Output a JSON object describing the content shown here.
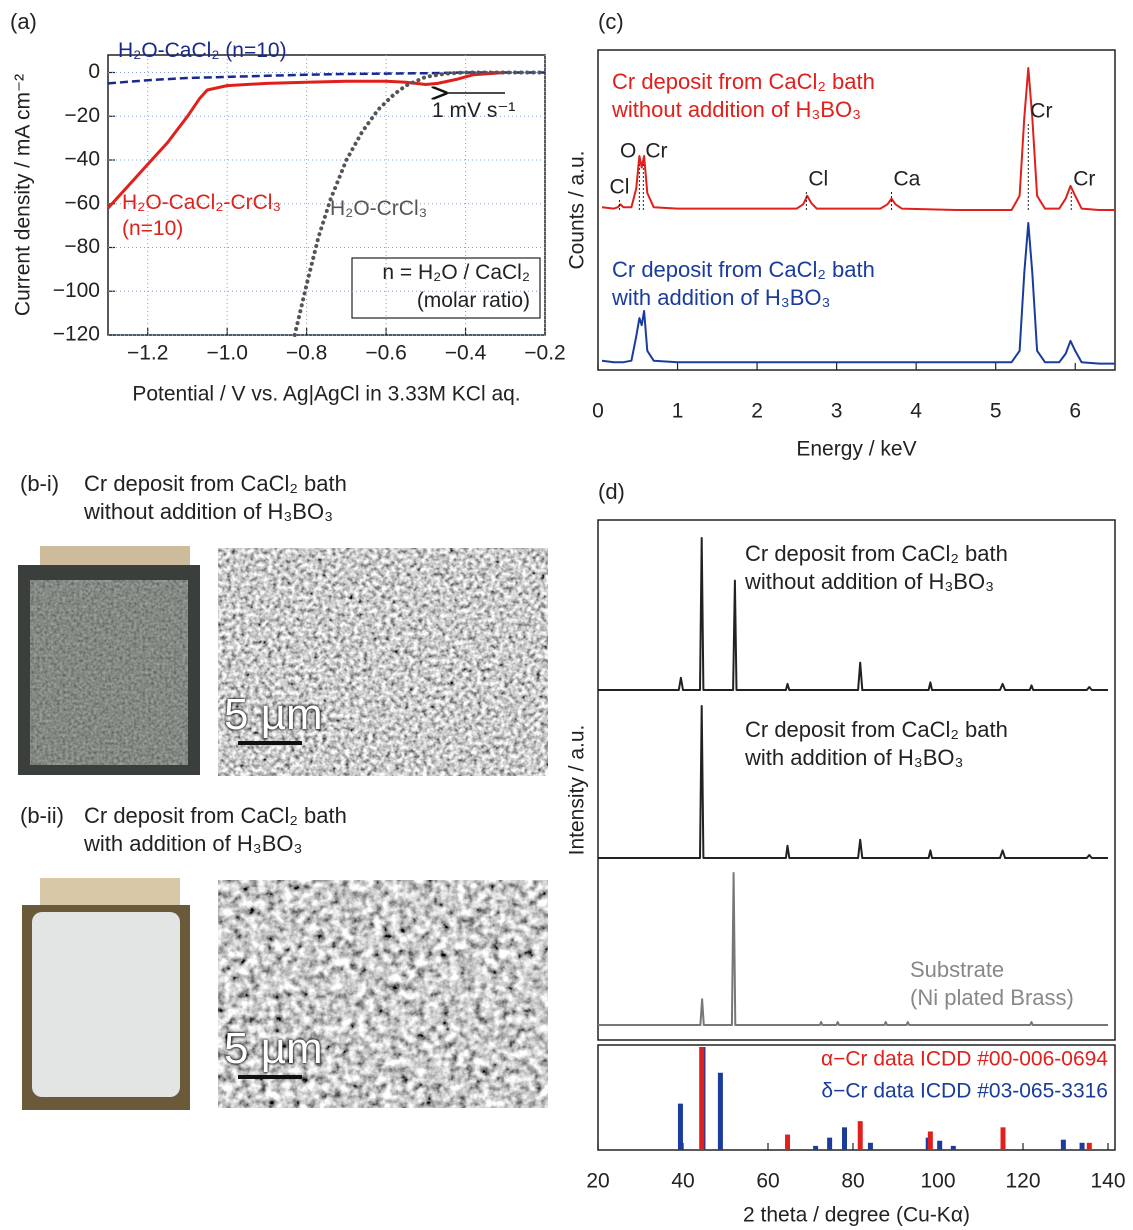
{
  "chart_data": [
    {
      "type": "line",
      "panel": "(a)",
      "xlabel": "Potential / V vs. Ag|AgCl in 3.33M KCl aq.",
      "ylabel": "Current density / mA cm⁻²",
      "xlim": [
        -1.3,
        -0.2
      ],
      "ylim": [
        -120,
        8
      ],
      "xticks": [
        {
          "value": -1.2,
          "label": "−1.2"
        },
        {
          "value": -1.0,
          "label": "−1.0"
        },
        {
          "value": -0.8,
          "label": "−0.8"
        },
        {
          "value": -0.6,
          "label": "−0.6"
        },
        {
          "value": -0.4,
          "label": "−0.4"
        },
        {
          "value": -0.2,
          "label": "−0.2"
        }
      ],
      "yticks": [
        {
          "value": -120,
          "label": "−120"
        },
        {
          "value": -100,
          "label": "−100"
        },
        {
          "value": -80,
          "label": "−80"
        },
        {
          "value": -60,
          "label": "−60"
        },
        {
          "value": -40,
          "label": "−40"
        },
        {
          "value": -20,
          "label": "−20"
        },
        0
      ],
      "grid": true,
      "series": [
        {
          "name": "H₂O-CaCl₂ (n=10)",
          "color": "#1a2a8c",
          "dash": "dashed",
          "x": [
            -1.3,
            -1.2,
            -1.1,
            -1.0,
            -0.9,
            -0.8,
            -0.7,
            -0.6,
            -0.5,
            -0.4,
            -0.3,
            -0.2
          ],
          "values": [
            -5,
            -3.5,
            -2.5,
            -2,
            -1.5,
            -1,
            -0.7,
            -0.5,
            -0.3,
            0,
            0,
            0
          ]
        },
        {
          "name": "H₂O-CaCl₂-CrCl₃\n(n=10)",
          "color": "#e0201b",
          "dash": "solid",
          "x": [
            -1.3,
            -1.25,
            -1.2,
            -1.15,
            -1.1,
            -1.07,
            -1.05,
            -1.0,
            -0.9,
            -0.8,
            -0.7,
            -0.6,
            -0.55,
            -0.5,
            -0.47,
            -0.42,
            -0.38,
            -0.3
          ],
          "values": [
            -62,
            -52,
            -42,
            -32,
            -20,
            -12,
            -8,
            -6,
            -5,
            -4.5,
            -4,
            -4,
            -4.5,
            -5.5,
            -5,
            -3,
            -1,
            0
          ]
        },
        {
          "name": "H₂O-CrCl₃",
          "color": "#555555",
          "dash": "dotted",
          "x": [
            -0.83,
            -0.8,
            -0.77,
            -0.74,
            -0.7,
            -0.66,
            -0.62,
            -0.58,
            -0.55,
            -0.5,
            -0.45,
            -0.4,
            -0.3,
            -0.2
          ],
          "values": [
            -120,
            -97,
            -75,
            -58,
            -40,
            -27,
            -17,
            -10,
            -6,
            -2,
            -0.5,
            0,
            0,
            0
          ]
        }
      ],
      "annotations": [
        "1 mV s⁻¹",
        "n = H₂O / CaCl₂",
        "(molar ratio)"
      ]
    },
    {
      "type": "line",
      "panel": "(c)",
      "xlabel": "Energy / keV",
      "ylabel": "Counts / a.u.",
      "xlim": [
        0,
        6.5
      ],
      "xticks": [
        0,
        1,
        2,
        3,
        4,
        5,
        6
      ],
      "series": [
        {
          "name": "Cr deposit from CaCl₂ bath\nwithout addition of H₃BO₃",
          "color": "#e0201b",
          "dash": "solid",
          "x": [
            0.05,
            0.2,
            0.25,
            0.28,
            0.32,
            0.42,
            0.48,
            0.52,
            0.55,
            0.58,
            0.62,
            0.7,
            1.0,
            2.0,
            2.5,
            2.58,
            2.63,
            2.68,
            2.75,
            3.0,
            3.55,
            3.64,
            3.69,
            3.74,
            3.82,
            4.5,
            5.2,
            5.3,
            5.36,
            5.41,
            5.46,
            5.52,
            5.62,
            5.8,
            5.88,
            5.94,
            6.0,
            6.08,
            6.3,
            6.5
          ],
          "values": [
            2,
            1,
            2,
            4,
            2,
            2,
            15,
            38,
            30,
            38,
            12,
            2,
            1,
            1,
            1,
            4,
            10,
            5,
            1,
            1,
            1,
            4,
            8,
            4,
            1,
            0,
            0,
            10,
            65,
            100,
            65,
            10,
            1,
            1,
            8,
            17,
            10,
            1,
            0,
            0
          ]
        },
        {
          "name": "Cr deposit from CaCl₂ bath\nwith addition of H₃BO₃",
          "color": "#1a3c9c",
          "dash": "solid",
          "x": [
            0.05,
            0.2,
            0.25,
            0.28,
            0.32,
            0.42,
            0.48,
            0.52,
            0.55,
            0.58,
            0.62,
            0.7,
            1.0,
            2.0,
            2.5,
            2.58,
            2.63,
            2.68,
            2.75,
            3.0,
            3.55,
            3.64,
            3.69,
            3.74,
            3.82,
            4.5,
            5.2,
            5.3,
            5.36,
            5.41,
            5.46,
            5.52,
            5.62,
            5.8,
            5.88,
            5.94,
            6.0,
            6.08,
            6.3,
            6.5
          ],
          "values": [
            3,
            2,
            2,
            2,
            2,
            3,
            20,
            33,
            28,
            38,
            10,
            3,
            2,
            2,
            2,
            2,
            2,
            2,
            2,
            2,
            2,
            2,
            2,
            2,
            2,
            2,
            2,
            10,
            65,
            100,
            65,
            10,
            2,
            2,
            8,
            17,
            10,
            2,
            1,
            1
          ]
        }
      ],
      "peak_labels": [
        {
          "x": 0.27,
          "label": "Cl"
        },
        {
          "x": 0.52,
          "label": "O"
        },
        {
          "x": 0.57,
          "label": "Cr"
        },
        {
          "x": 2.62,
          "label": "Cl"
        },
        {
          "x": 3.69,
          "label": "Ca"
        },
        {
          "x": 5.41,
          "label": "Cr"
        },
        {
          "x": 5.95,
          "label": "Cr"
        }
      ]
    },
    {
      "type": "line",
      "panel": "(d)",
      "ylabel": "Intensity / a.u.",
      "xlim": [
        20,
        140
      ],
      "series": [
        {
          "name": "Cr deposit from CaCl₂ bath\nwithout addition of H₃BO₃",
          "color": "#222222",
          "dash": "solid",
          "x": [
            20,
            39,
            39.5,
            40,
            44,
            44.4,
            44.8,
            51.8,
            52.2,
            52.6,
            64.2,
            64.6,
            65,
            81.2,
            81.7,
            82.2,
            97.8,
            98.2,
            98.6,
            114.6,
            115.2,
            115.8,
            121.6,
            122,
            122.4,
            135,
            135.6,
            136.2,
            140
          ],
          "values": [
            0,
            0,
            8,
            0,
            0,
            100,
            0,
            0,
            72,
            0,
            0,
            4,
            0,
            0,
            18,
            0,
            0,
            5,
            0,
            0,
            4,
            0,
            0,
            3,
            0,
            0,
            2,
            0,
            0
          ]
        },
        {
          "name": "Cr deposit from CaCl₂ bath\nwith addition of H₃BO₃",
          "color": "#222222",
          "dash": "solid",
          "x": [
            20,
            44,
            44.4,
            44.8,
            64.2,
            64.6,
            65,
            81.2,
            81.7,
            82.2,
            97.8,
            98.2,
            98.6,
            114.6,
            115.2,
            115.8,
            135,
            135.6,
            136.2,
            140
          ],
          "values": [
            0,
            0,
            100,
            0,
            0,
            8,
            0,
            0,
            12,
            0,
            0,
            5,
            0,
            0,
            5,
            0,
            0,
            2,
            0,
            0
          ]
        },
        {
          "name": "Substrate\n(Ni plated Brass)",
          "color": "#777777",
          "dash": "solid",
          "x": [
            20,
            44.1,
            44.5,
            44.9,
            51.5,
            51.9,
            52.3,
            72.2,
            72.5,
            72.8,
            76.1,
            76.4,
            76.7,
            87.4,
            87.7,
            88,
            92.6,
            92.9,
            93.2,
            121.7,
            122,
            122.3,
            140
          ],
          "values": [
            0,
            0,
            17,
            0,
            0,
            100,
            0,
            0,
            2,
            0,
            0,
            2,
            0,
            0,
            2,
            0,
            0,
            2,
            0,
            0,
            2,
            0,
            0
          ]
        }
      ]
    },
    {
      "type": "stick",
      "xlabel": "2 theta / degree (Cu-Kα)",
      "xlim": [
        20,
        140
      ],
      "xticks": [
        20,
        40,
        60,
        80,
        100,
        120,
        140
      ],
      "series": [
        {
          "name": "δ−Cr data ICDD #03-065-3316",
          "color": "#1a3c9c",
          "x": [
            39.4,
            44.7,
            48.8,
            71.2,
            74.5,
            78.0,
            84.1,
            97.7,
            100.4,
            103.6,
            129.5,
            133.9
          ],
          "values": [
            45,
            100,
            75,
            4,
            12,
            22,
            7,
            12,
            9,
            4,
            10,
            7
          ]
        },
        {
          "name": "α−Cr data ICDD #00-006-0694",
          "color": "#e0201b",
          "x": [
            44.4,
            64.6,
            81.7,
            98.2,
            115.3,
            135.6
          ],
          "values": [
            100,
            15,
            28,
            18,
            22,
            7
          ]
        }
      ]
    }
  ],
  "photos": [
    {
      "panel": "(b-i)",
      "caption": "Cr deposit from CaCl₂ bath\nwithout addition of H₃BO₃",
      "scale_bar": "5 µm"
    },
    {
      "panel": "(b-ii)",
      "caption": "Cr deposit from CaCl₂ bath\nwith addition of H₃BO₃",
      "scale_bar": "5 µm"
    }
  ]
}
